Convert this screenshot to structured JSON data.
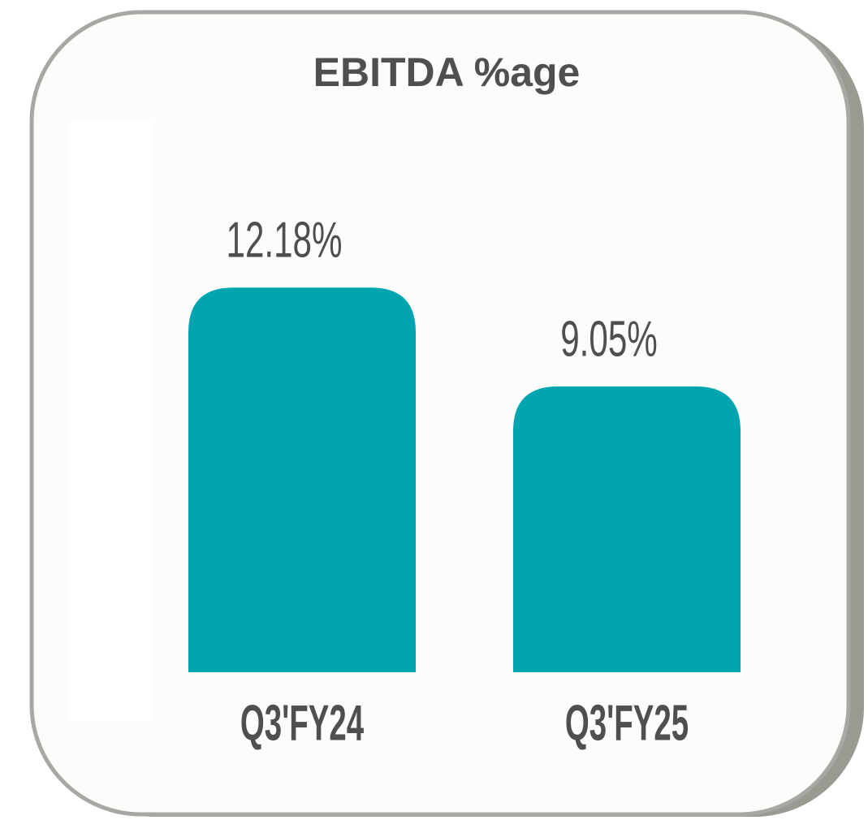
{
  "chart_data": {
    "type": "bar",
    "title": "EBITDA %age",
    "categories": [
      "Q3'FY24",
      "Q3'FY25"
    ],
    "values": [
      12.18,
      9.05
    ],
    "value_labels": [
      "12.18%",
      "9.05%"
    ],
    "color": "#00a5b0"
  }
}
